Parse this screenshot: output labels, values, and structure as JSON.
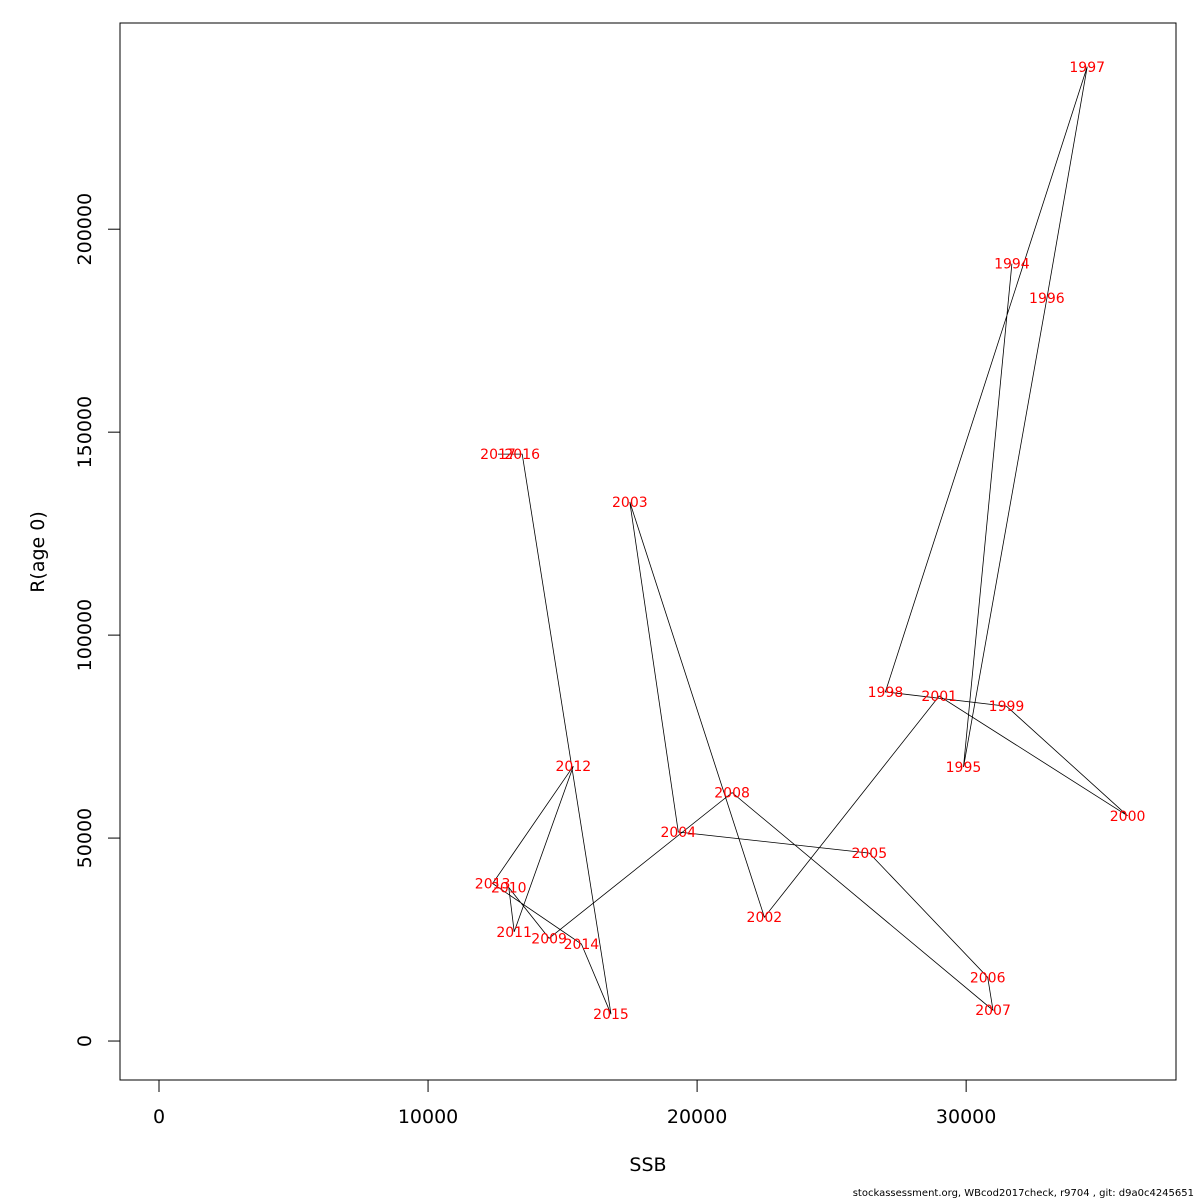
{
  "chart_data": {
    "type": "line",
    "xlabel": "SSB",
    "ylabel": "R(age 0)",
    "xlim": [
      -1450,
      37800
    ],
    "ylim": [
      -9600,
      250800
    ],
    "x_ticks": [
      0,
      10000,
      20000,
      30000
    ],
    "y_ticks": [
      0,
      50000,
      100000,
      150000,
      200000
    ],
    "x_tick_labels": [
      "0",
      "10000",
      "20000",
      "30000"
    ],
    "y_tick_labels": [
      "0",
      "50000",
      "100000",
      "150000",
      "200000"
    ],
    "grid": false,
    "legend": "none",
    "line_color": "#000000",
    "label_color": "#ff0000",
    "points": [
      {
        "year": "1994",
        "x": 31700,
        "y": 191500
      },
      {
        "year": "1995",
        "x": 29900,
        "y": 67500
      },
      {
        "year": "1996",
        "x": 33000,
        "y": 183000
      },
      {
        "year": "1997",
        "x": 34500,
        "y": 240000
      },
      {
        "year": "1998",
        "x": 27000,
        "y": 86000
      },
      {
        "year": "1999",
        "x": 31500,
        "y": 82500
      },
      {
        "year": "2000",
        "x": 36000,
        "y": 55500
      },
      {
        "year": "2001",
        "x": 29000,
        "y": 85000
      },
      {
        "year": "2002",
        "x": 22500,
        "y": 30500
      },
      {
        "year": "2003",
        "x": 17500,
        "y": 132800
      },
      {
        "year": "2004",
        "x": 19300,
        "y": 51500
      },
      {
        "year": "2005",
        "x": 26400,
        "y": 46300
      },
      {
        "year": "2006",
        "x": 30800,
        "y": 15700
      },
      {
        "year": "2007",
        "x": 31000,
        "y": 7600
      },
      {
        "year": "2008",
        "x": 21300,
        "y": 61200
      },
      {
        "year": "2009",
        "x": 14500,
        "y": 25300
      },
      {
        "year": "2010",
        "x": 13000,
        "y": 37800
      },
      {
        "year": "2011",
        "x": 13200,
        "y": 26900
      },
      {
        "year": "2012",
        "x": 15400,
        "y": 67700
      },
      {
        "year": "2013",
        "x": 12400,
        "y": 38800
      },
      {
        "year": "2014",
        "x": 15700,
        "y": 23900
      },
      {
        "year": "2015",
        "x": 16800,
        "y": 6600
      },
      {
        "year": "2016",
        "x": 13500,
        "y": 144600
      },
      {
        "year": "2017",
        "x": 12600,
        "y": 144600
      }
    ]
  },
  "footer": "stockassessment.org, WBcod2017check, r9704 , git: d9a0c4245651"
}
